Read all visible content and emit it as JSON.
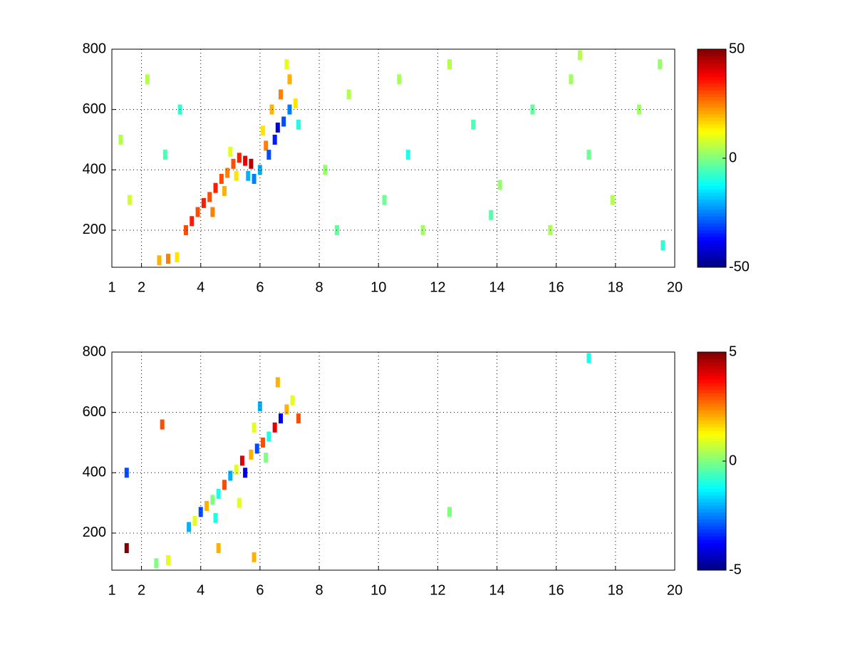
{
  "chart_data": [
    {
      "type": "heatmap",
      "xlim": [
        1,
        20
      ],
      "ylim": [
        77,
        800
      ],
      "xticks": [
        1,
        2,
        4,
        6,
        8,
        10,
        12,
        14,
        16,
        18,
        20
      ],
      "yticks": [
        200,
        400,
        600,
        800
      ],
      "clim": [
        -50,
        50
      ],
      "cticks": [
        -50,
        0,
        50
      ],
      "grid": true,
      "x": [
        2.6,
        2.9,
        3.2,
        3.5,
        3.7,
        3.9,
        4.1,
        4.3,
        4.5,
        4.7,
        4.9,
        5.1,
        5.3,
        5.5,
        5.7,
        5.6,
        5.8,
        6.0,
        6.2,
        6.3,
        6.5,
        6.6,
        6.8,
        7.0,
        6.4,
        6.7,
        7.0,
        7.2,
        4.4,
        4.8,
        5.2,
        5.0,
        6.1,
        6.9,
        7.3,
        1.3,
        1.6,
        2.2,
        2.8,
        3.3,
        8.2,
        9,
        10.2,
        11,
        11.5,
        12.4,
        13.2,
        14.1,
        15.2,
        15.8,
        16.5,
        17.1,
        17.9,
        18.8,
        19.6,
        19.5,
        8.6,
        10.7,
        13.8,
        16.8
      ],
      "y": [
        100,
        105,
        110,
        200,
        230,
        260,
        290,
        310,
        340,
        370,
        390,
        420,
        440,
        430,
        420,
        380,
        370,
        400,
        480,
        450,
        500,
        540,
        560,
        600,
        600,
        650,
        700,
        620,
        260,
        330,
        380,
        460,
        530,
        750,
        550,
        500,
        300,
        700,
        450,
        600,
        400,
        650,
        300,
        450,
        200,
        750,
        550,
        350,
        600,
        200,
        700,
        450,
        300,
        600,
        150,
        750,
        200,
        700,
        250,
        780
      ],
      "values": [
        20,
        25,
        15,
        30,
        35,
        30,
        35,
        30,
        35,
        30,
        25,
        30,
        35,
        40,
        45,
        -20,
        -25,
        -20,
        25,
        -30,
        -35,
        -40,
        -30,
        -25,
        20,
        25,
        20,
        15,
        25,
        20,
        15,
        10,
        15,
        10,
        -10,
        5,
        8,
        5,
        -5,
        -8,
        2,
        5,
        -2,
        -10,
        3,
        5,
        -5,
        2,
        -3,
        4,
        3,
        -2,
        5,
        3,
        -8,
        2,
        -3,
        4,
        -4,
        5
      ]
    },
    {
      "type": "heatmap",
      "xlim": [
        1,
        20
      ],
      "ylim": [
        77,
        800
      ],
      "xticks": [
        1,
        2,
        4,
        6,
        8,
        10,
        12,
        14,
        16,
        18,
        20
      ],
      "yticks": [
        200,
        400,
        600,
        800
      ],
      "clim": [
        -5,
        5
      ],
      "cticks": [
        -5,
        0,
        5
      ],
      "grid": true,
      "x": [
        3.6,
        3.8,
        4.0,
        4.2,
        4.4,
        4.6,
        4.8,
        5.0,
        5.2,
        5.4,
        5.5,
        5.7,
        5.9,
        6.1,
        6.3,
        6.5,
        6.7,
        6.9,
        7.1,
        7.3,
        6.6,
        6.2,
        5.3,
        4.5,
        6.0,
        5.8,
        1.5,
        1.5,
        2.7,
        2.5,
        2.9,
        12.4,
        17.1,
        5.8,
        4.6
      ],
      "y": [
        220,
        240,
        270,
        290,
        310,
        330,
        360,
        390,
        410,
        440,
        400,
        460,
        480,
        500,
        520,
        550,
        580,
        610,
        640,
        580,
        700,
        450,
        300,
        250,
        620,
        550,
        400,
        150,
        560,
        100,
        110,
        270,
        780,
        120,
        150
      ],
      "values": [
        -2,
        1,
        -3,
        2,
        0,
        -1,
        3,
        -2,
        1,
        4,
        -4,
        2,
        -3,
        3,
        -1,
        4,
        -4,
        2,
        1,
        3,
        2,
        0,
        1,
        -1,
        -2,
        1,
        -3,
        5,
        3,
        0,
        1,
        0,
        -1,
        2,
        2
      ]
    }
  ]
}
